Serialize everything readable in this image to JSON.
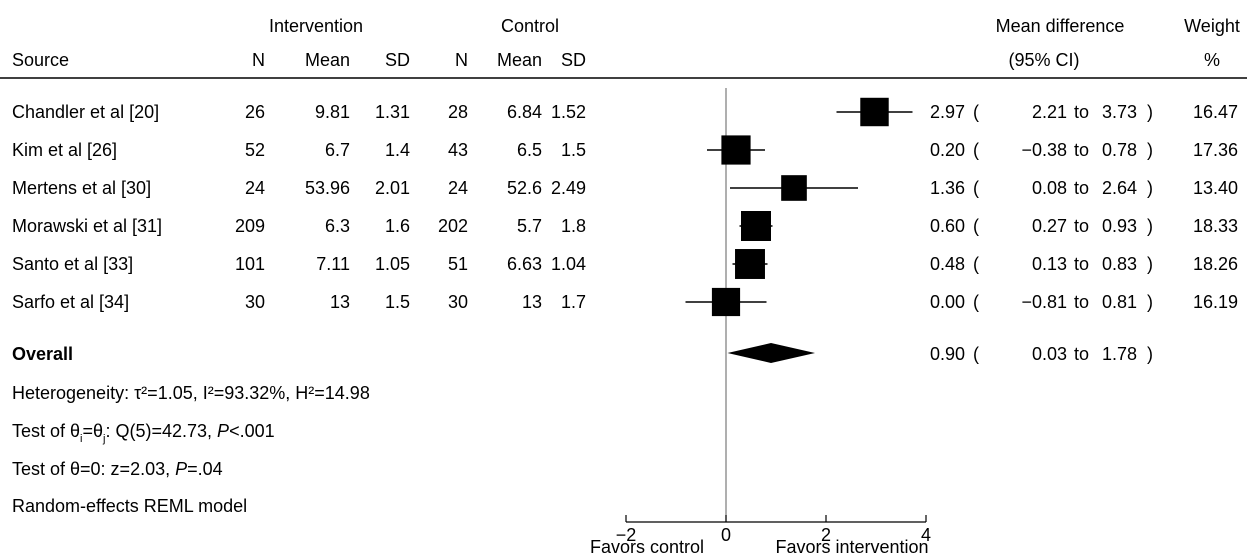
{
  "chart_data": {
    "type": "forest",
    "headers": {
      "group_intervention": "Intervention",
      "group_control": "Control",
      "source": "Source",
      "n": "N",
      "mean": "Mean",
      "sd": "SD",
      "effect_line1": "Mean difference",
      "effect_line2": "(95% CI)",
      "weight_line1": "Weight",
      "weight_line2": "%"
    },
    "studies": [
      {
        "source": "Chandler et al [20]",
        "int_n": "26",
        "int_mean": "9.81",
        "int_sd": "1.31",
        "ctl_n": "28",
        "ctl_mean": "6.84",
        "ctl_sd": "1.52",
        "md": 2.97,
        "lo": 2.21,
        "hi": 3.73,
        "md_text": "2.97",
        "lo_text": "2.21",
        "hi_text": "3.73",
        "weight": 16.47,
        "weight_text": "16.47"
      },
      {
        "source": "Kim et al [26]",
        "int_n": "52",
        "int_mean": "6.7",
        "int_sd": "1.4",
        "ctl_n": "43",
        "ctl_mean": "6.5",
        "ctl_sd": "1.5",
        "md": 0.2,
        "lo": -0.38,
        "hi": 0.78,
        "md_text": "0.20",
        "lo_text": "−0.38",
        "hi_text": "0.78",
        "weight": 17.36,
        "weight_text": "17.36"
      },
      {
        "source": "Mertens et al [30]",
        "int_n": "24",
        "int_mean": "53.96",
        "int_sd": "2.01",
        "ctl_n": "24",
        "ctl_mean": "52.6",
        "ctl_sd": "2.49",
        "md": 1.36,
        "lo": 0.08,
        "hi": 2.64,
        "md_text": "1.36",
        "lo_text": "0.08",
        "hi_text": "2.64",
        "weight": 13.4,
        "weight_text": "13.40"
      },
      {
        "source": "Morawski et al [31]",
        "int_n": "209",
        "int_mean": "6.3",
        "int_sd": "1.6",
        "ctl_n": "202",
        "ctl_mean": "5.7",
        "ctl_sd": "1.8",
        "md": 0.6,
        "lo": 0.27,
        "hi": 0.93,
        "md_text": "0.60",
        "lo_text": "0.27",
        "hi_text": "0.93",
        "weight": 18.33,
        "weight_text": "18.33"
      },
      {
        "source": "Santo et al [33]",
        "int_n": "101",
        "int_mean": "7.11",
        "int_sd": "1.05",
        "ctl_n": "51",
        "ctl_mean": "6.63",
        "ctl_sd": "1.04",
        "md": 0.48,
        "lo": 0.13,
        "hi": 0.83,
        "md_text": "0.48",
        "lo_text": "0.13",
        "hi_text": "0.83",
        "weight": 18.26,
        "weight_text": "18.26"
      },
      {
        "source": "Sarfo et al [34]",
        "int_n": "30",
        "int_mean": "13",
        "int_sd": "1.5",
        "ctl_n": "30",
        "ctl_mean": "13",
        "ctl_sd": "1.7",
        "md": 0.0,
        "lo": -0.81,
        "hi": 0.81,
        "md_text": "0.00",
        "lo_text": "−0.81",
        "hi_text": "0.81",
        "weight": 16.19,
        "weight_text": "16.19"
      }
    ],
    "overall": {
      "label": "Overall",
      "md": 0.9,
      "lo": 0.03,
      "hi": 1.78,
      "md_text": "0.90",
      "lo_text": "0.03",
      "hi_text": "1.78"
    },
    "to_word": "to",
    "footnotes": {
      "heterogeneity": {
        "prefix": "Heterogeneity: τ²=1.05, I²=93.32%, H²=14.98"
      },
      "test_equal": {
        "pre": "Test of θ",
        "sub_i": "i",
        "eq": "=θ",
        "sub_j": "j",
        "rest": ": Q(5)=42.73, ",
        "p_label": "P",
        "p_value": "<.001"
      },
      "test_zero": {
        "pre": "Test of θ=0: z=2.03, ",
        "p_label": "P",
        "p_value": "=.04"
      },
      "model": "Random-effects REML model"
    },
    "x_axis": {
      "range": [
        -2,
        4
      ],
      "ticks": [
        -2,
        0,
        2,
        4
      ],
      "tick_labels": [
        "−2",
        "0",
        "2",
        "4"
      ],
      "reference_line": 0,
      "label_left": "Favors control",
      "label_right": "Favors intervention"
    }
  }
}
